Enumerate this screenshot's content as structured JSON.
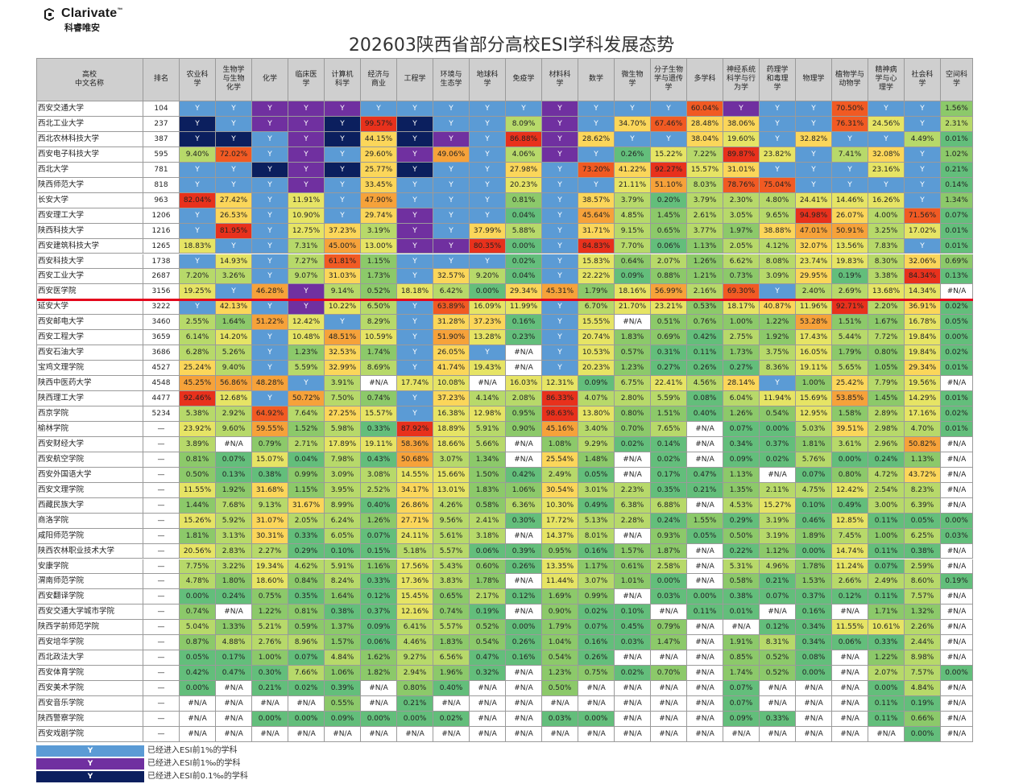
{
  "brand": {
    "name": "Clarivate",
    "trademark": "™",
    "sub": "科睿唯安"
  },
  "title": "202603陕西省部分高校ESI学科发展态势",
  "headers": [
    "高校\n中文名称",
    "排名",
    "农业科\n学",
    "生物学\n与生物\n化学",
    "化学",
    "临床医\n学",
    "计算机\n科学",
    "经济与\n商业",
    "工程学",
    "环境与\n生态学",
    "地球科\n学",
    "免疫学",
    "材料科\n学",
    "数学",
    "微生物\n学",
    "分子生物\n学与遗传\n学",
    "多学科",
    "神经系统\n科学与行\n为学",
    "药理学\n和毒理\n学",
    "物理学",
    "植物学与\n动物学",
    "精神病\n学与心\n理学",
    "社会科\n学",
    "空间科\n学"
  ],
  "rows": [
    [
      "西安交通大学",
      "104",
      "Y",
      "Y",
      "Y",
      "Y",
      "Y",
      "Y",
      "Y",
      "Y",
      "Y",
      "Y",
      "Y",
      "Y",
      "Y",
      "Y",
      "60.04%",
      "Y",
      "Y",
      "Y",
      "70.50%",
      "Y",
      "Y",
      "1.56%"
    ],
    [
      "西北工业大学",
      "237",
      "Y",
      "Y",
      "Y",
      "Y",
      "Y",
      "99.57%",
      "Y",
      "Y",
      "Y",
      "8.09%",
      "Y",
      "Y",
      "34.70%",
      "67.46%",
      "28.48%",
      "38.06%",
      "Y",
      "Y",
      "76.31%",
      "24.56%",
      "Y",
      "2.31%"
    ],
    [
      "西北农林科技大学",
      "387",
      "Y",
      "Y",
      "Y",
      "Y",
      "Y",
      "44.15%",
      "Y",
      "Y",
      "Y",
      "86.88%",
      "Y",
      "28.62%",
      "Y",
      "Y",
      "38.04%",
      "19.60%",
      "Y",
      "32.82%",
      "Y",
      "Y",
      "4.49%",
      "0.01%"
    ],
    [
      "西安电子科技大学",
      "595",
      "9.40%",
      "72.02%",
      "Y",
      "Y",
      "Y",
      "29.60%",
      "Y",
      "49.06%",
      "Y",
      "4.06%",
      "Y",
      "Y",
      "0.26%",
      "15.22%",
      "7.22%",
      "89.87%",
      "23.82%",
      "Y",
      "7.41%",
      "32.08%",
      "Y",
      "1.02%"
    ],
    [
      "西北大学",
      "781",
      "Y",
      "Y",
      "Y",
      "Y",
      "Y",
      "25.77%",
      "Y",
      "Y",
      "Y",
      "27.98%",
      "Y",
      "73.20%",
      "41.22%",
      "92.27%",
      "15.57%",
      "31.01%",
      "Y",
      "Y",
      "Y",
      "23.16%",
      "Y",
      "0.21%"
    ],
    [
      "陕西师范大学",
      "818",
      "Y",
      "Y",
      "Y",
      "Y",
      "Y",
      "33.45%",
      "Y",
      "Y",
      "Y",
      "20.23%",
      "Y",
      "Y",
      "21.11%",
      "51.10%",
      "8.03%",
      "78.76%",
      "75.04%",
      "Y",
      "Y",
      "Y",
      "Y",
      "0.14%"
    ],
    [
      "长安大学",
      "963",
      "82.04%",
      "27.42%",
      "Y",
      "11.91%",
      "Y",
      "47.90%",
      "Y",
      "Y",
      "Y",
      "0.81%",
      "Y",
      "38.57%",
      "3.79%",
      "0.20%",
      "3.79%",
      "2.30%",
      "4.80%",
      "24.41%",
      "14.46%",
      "16.26%",
      "Y",
      "1.34%"
    ],
    [
      "西安理工大学",
      "1206",
      "Y",
      "26.53%",
      "Y",
      "10.90%",
      "Y",
      "29.74%",
      "Y",
      "Y",
      "Y",
      "0.04%",
      "Y",
      "45.64%",
      "4.85%",
      "1.45%",
      "2.61%",
      "3.05%",
      "9.65%",
      "94.98%",
      "26.07%",
      "4.00%",
      "71.56%",
      "0.07%"
    ],
    [
      "陕西科技大学",
      "1216",
      "Y",
      "81.95%",
      "Y",
      "12.75%",
      "37.23%",
      "3.19%",
      "Y",
      "Y",
      "37.99%",
      "5.88%",
      "Y",
      "31.71%",
      "9.15%",
      "0.65%",
      "3.77%",
      "1.97%",
      "38.88%",
      "47.01%",
      "50.91%",
      "3.25%",
      "17.02%",
      "0.01%"
    ],
    [
      "西安建筑科技大学",
      "1265",
      "18.83%",
      "Y",
      "Y",
      "7.31%",
      "45.00%",
      "13.00%",
      "Y",
      "Y",
      "80.35%",
      "0.00%",
      "Y",
      "84.83%",
      "7.70%",
      "0.06%",
      "1.13%",
      "2.05%",
      "4.12%",
      "32.07%",
      "13.56%",
      "7.83%",
      "Y",
      "0.01%"
    ],
    [
      "西安科技大学",
      "1738",
      "Y",
      "14.93%",
      "Y",
      "7.27%",
      "61.81%",
      "1.15%",
      "Y",
      "Y",
      "Y",
      "0.02%",
      "Y",
      "15.83%",
      "0.64%",
      "2.07%",
      "1.26%",
      "6.62%",
      "8.08%",
      "23.74%",
      "19.83%",
      "8.30%",
      "32.06%",
      "0.69%"
    ],
    [
      "西安工业大学",
      "2687",
      "7.20%",
      "3.26%",
      "Y",
      "9.07%",
      "31.03%",
      "1.73%",
      "Y",
      "32.57%",
      "9.20%",
      "0.04%",
      "Y",
      "22.22%",
      "0.09%",
      "0.88%",
      "1.21%",
      "0.73%",
      "3.09%",
      "29.95%",
      "0.19%",
      "3.38%",
      "84.34%",
      "0.13%"
    ],
    [
      "西安医学院",
      "3156",
      "19.25%",
      "Y",
      "46.28%",
      "Y",
      "9.14%",
      "0.52%",
      "18.18%",
      "6.42%",
      "0.00%",
      "29.34%",
      "45.31%",
      "1.79%",
      "18.16%",
      "56.99%",
      "2.16%",
      "69.30%",
      "Y",
      "2.40%",
      "2.69%",
      "13.68%",
      "14.34%",
      "#N/A"
    ],
    [
      "延安大学",
      "3222",
      "Y",
      "42.13%",
      "Y",
      "Y",
      "10.22%",
      "6.50%",
      "Y",
      "63.89%",
      "16.09%",
      "11.99%",
      "Y",
      "6.70%",
      "21.70%",
      "23.21%",
      "0.53%",
      "18.17%",
      "40.87%",
      "11.96%",
      "92.71%",
      "2.20%",
      "36.91%",
      "0.02%"
    ],
    [
      "西安邮电大学",
      "3460",
      "2.55%",
      "1.64%",
      "51.22%",
      "12.42%",
      "Y",
      "8.29%",
      "Y",
      "31.28%",
      "37.23%",
      "0.16%",
      "Y",
      "15.55%",
      "#N/A",
      "0.51%",
      "0.76%",
      "1.00%",
      "1.22%",
      "53.28%",
      "1.51%",
      "1.67%",
      "16.78%",
      "0.05%"
    ],
    [
      "西安工程大学",
      "3659",
      "6.14%",
      "14.20%",
      "Y",
      "10.48%",
      "48.51%",
      "10.59%",
      "Y",
      "51.90%",
      "13.28%",
      "0.23%",
      "Y",
      "20.74%",
      "1.83%",
      "0.69%",
      "0.42%",
      "2.75%",
      "1.92%",
      "17.43%",
      "5.44%",
      "7.72%",
      "19.84%",
      "0.00%"
    ],
    [
      "西安石油大学",
      "3686",
      "6.28%",
      "5.26%",
      "Y",
      "1.23%",
      "32.53%",
      "1.74%",
      "Y",
      "26.05%",
      "Y",
      "#N/A",
      "Y",
      "10.53%",
      "0.57%",
      "0.31%",
      "0.11%",
      "1.73%",
      "3.75%",
      "16.05%",
      "1.79%",
      "0.80%",
      "19.84%",
      "0.02%"
    ],
    [
      "宝鸡文理学院",
      "4527",
      "25.24%",
      "9.40%",
      "Y",
      "5.59%",
      "32.99%",
      "8.69%",
      "Y",
      "41.74%",
      "19.43%",
      "#N/A",
      "Y",
      "20.23%",
      "1.23%",
      "0.27%",
      "0.26%",
      "0.27%",
      "8.36%",
      "19.11%",
      "5.65%",
      "1.05%",
      "29.34%",
      "0.01%"
    ],
    [
      "陕西中医药大学",
      "4548",
      "45.25%",
      "56.86%",
      "48.28%",
      "Y",
      "3.91%",
      "#N/A",
      "17.74%",
      "10.08%",
      "#N/A",
      "16.03%",
      "12.31%",
      "0.09%",
      "6.75%",
      "22.41%",
      "4.56%",
      "28.14%",
      "Y",
      "1.00%",
      "25.42%",
      "7.79%",
      "19.56%",
      "#N/A"
    ],
    [
      "陕西理工大学",
      "4477",
      "92.46%",
      "12.68%",
      "Y",
      "50.72%",
      "7.50%",
      "0.74%",
      "Y",
      "37.23%",
      "4.14%",
      "2.08%",
      "86.33%",
      "4.07%",
      "2.80%",
      "5.59%",
      "0.08%",
      "6.04%",
      "11.94%",
      "15.69%",
      "53.85%",
      "1.45%",
      "14.29%",
      "0.01%"
    ],
    [
      "西京学院",
      "5234",
      "5.38%",
      "2.92%",
      "64.92%",
      "7.64%",
      "27.25%",
      "15.57%",
      "Y",
      "16.38%",
      "12.98%",
      "0.95%",
      "98.63%",
      "13.80%",
      "0.80%",
      "1.51%",
      "0.40%",
      "1.26%",
      "0.54%",
      "12.95%",
      "1.58%",
      "2.89%",
      "17.16%",
      "0.02%"
    ],
    [
      "榆林学院",
      "—",
      "23.92%",
      "9.60%",
      "59.55%",
      "1.52%",
      "5.98%",
      "0.33%",
      "87.92%",
      "18.89%",
      "5.91%",
      "0.90%",
      "45.16%",
      "3.40%",
      "0.70%",
      "7.65%",
      "#N/A",
      "0.07%",
      "0.00%",
      "5.03%",
      "39.51%",
      "2.98%",
      "4.70%",
      "0.01%"
    ],
    [
      "西安财经大学",
      "—",
      "3.89%",
      "#N/A",
      "0.79%",
      "2.71%",
      "17.89%",
      "19.11%",
      "58.36%",
      "18.66%",
      "5.66%",
      "#N/A",
      "1.08%",
      "9.29%",
      "0.02%",
      "0.14%",
      "#N/A",
      "0.34%",
      "0.37%",
      "1.81%",
      "3.61%",
      "2.96%",
      "50.82%",
      "#N/A"
    ],
    [
      "西安航空学院",
      "—",
      "0.81%",
      "0.07%",
      "15.07%",
      "0.04%",
      "7.98%",
      "0.43%",
      "50.68%",
      "3.07%",
      "1.34%",
      "#N/A",
      "25.54%",
      "1.48%",
      "#N/A",
      "0.02%",
      "#N/A",
      "0.09%",
      "0.02%",
      "5.76%",
      "0.00%",
      "0.24%",
      "1.13%",
      "#N/A"
    ],
    [
      "西安外国语大学",
      "—",
      "0.50%",
      "0.13%",
      "0.38%",
      "0.99%",
      "3.09%",
      "3.08%",
      "14.55%",
      "15.66%",
      "1.50%",
      "0.42%",
      "2.49%",
      "0.05%",
      "#N/A",
      "0.17%",
      "0.47%",
      "1.13%",
      "#N/A",
      "0.07%",
      "0.80%",
      "4.72%",
      "43.72%",
      "#N/A"
    ],
    [
      "西安文理学院",
      "—",
      "11.55%",
      "1.92%",
      "31.68%",
      "1.15%",
      "3.95%",
      "2.52%",
      "34.17%",
      "13.01%",
      "1.83%",
      "1.06%",
      "30.54%",
      "3.01%",
      "2.23%",
      "0.35%",
      "0.21%",
      "1.35%",
      "2.11%",
      "4.75%",
      "12.42%",
      "2.54%",
      "8.23%",
      "#N/A"
    ],
    [
      "西藏民族大学",
      "—",
      "1.44%",
      "7.68%",
      "9.13%",
      "31.67%",
      "8.99%",
      "0.40%",
      "26.86%",
      "4.26%",
      "0.58%",
      "6.36%",
      "10.30%",
      "0.49%",
      "6.38%",
      "6.88%",
      "#N/A",
      "4.53%",
      "15.27%",
      "0.10%",
      "0.49%",
      "3.00%",
      "6.39%",
      "#N/A"
    ],
    [
      "商洛学院",
      "—",
      "15.26%",
      "5.92%",
      "31.07%",
      "2.05%",
      "6.24%",
      "1.26%",
      "27.71%",
      "9.56%",
      "2.41%",
      "0.30%",
      "17.72%",
      "5.13%",
      "2.28%",
      "0.24%",
      "1.55%",
      "0.29%",
      "3.19%",
      "0.46%",
      "12.85%",
      "0.11%",
      "0.05%",
      "0.00%"
    ],
    [
      "咸阳师范学院",
      "—",
      "1.81%",
      "3.13%",
      "30.31%",
      "0.33%",
      "6.05%",
      "0.07%",
      "24.11%",
      "5.61%",
      "3.18%",
      "#N/A",
      "14.37%",
      "8.01%",
      "#N/A",
      "0.93%",
      "0.05%",
      "0.50%",
      "3.19%",
      "1.89%",
      "7.45%",
      "1.00%",
      "6.25%",
      "0.03%"
    ],
    [
      "陕西农林职业技术大学",
      "—",
      "20.56%",
      "2.83%",
      "2.27%",
      "0.29%",
      "0.10%",
      "0.15%",
      "5.18%",
      "5.57%",
      "0.06%",
      "0.39%",
      "0.95%",
      "0.16%",
      "1.57%",
      "1.87%",
      "#N/A",
      "0.22%",
      "1.12%",
      "0.00%",
      "14.74%",
      "0.11%",
      "0.38%",
      "#N/A"
    ],
    [
      "安康学院",
      "—",
      "7.75%",
      "3.22%",
      "19.34%",
      "4.62%",
      "5.91%",
      "1.16%",
      "17.56%",
      "5.43%",
      "0.60%",
      "0.26%",
      "13.35%",
      "1.17%",
      "0.61%",
      "2.58%",
      "#N/A",
      "5.31%",
      "4.96%",
      "1.78%",
      "11.24%",
      "0.07%",
      "2.59%",
      "#N/A"
    ],
    [
      "渭南师范学院",
      "—",
      "4.78%",
      "1.80%",
      "18.60%",
      "0.84%",
      "8.24%",
      "0.33%",
      "17.36%",
      "3.83%",
      "1.78%",
      "#N/A",
      "11.44%",
      "3.07%",
      "1.01%",
      "0.00%",
      "#N/A",
      "0.58%",
      "0.21%",
      "1.53%",
      "2.66%",
      "2.49%",
      "8.60%",
      "0.19%"
    ],
    [
      "西安翻译学院",
      "—",
      "0.00%",
      "0.24%",
      "0.75%",
      "0.35%",
      "1.64%",
      "0.12%",
      "15.45%",
      "0.65%",
      "2.17%",
      "0.12%",
      "1.69%",
      "0.99%",
      "#N/A",
      "0.03%",
      "0.00%",
      "0.38%",
      "0.07%",
      "0.37%",
      "0.12%",
      "0.11%",
      "7.57%",
      "#N/A"
    ],
    [
      "西安交通大学城市学院",
      "—",
      "0.74%",
      "#N/A",
      "1.22%",
      "0.81%",
      "0.38%",
      "0.37%",
      "12.16%",
      "0.74%",
      "0.19%",
      "#N/A",
      "0.90%",
      "0.02%",
      "0.10%",
      "#N/A",
      "0.11%",
      "0.01%",
      "#N/A",
      "0.16%",
      "#N/A",
      "1.71%",
      "1.32%",
      "#N/A"
    ],
    [
      "陕西学前师范学院",
      "—",
      "5.04%",
      "1.33%",
      "5.21%",
      "0.59%",
      "1.37%",
      "0.09%",
      "6.41%",
      "5.57%",
      "0.52%",
      "0.00%",
      "1.79%",
      "0.07%",
      "0.45%",
      "0.79%",
      "#N/A",
      "#N/A",
      "0.12%",
      "0.34%",
      "11.55%",
      "10.61%",
      "2.26%",
      "#N/A"
    ],
    [
      "西安培华学院",
      "—",
      "0.87%",
      "4.88%",
      "2.76%",
      "8.96%",
      "1.57%",
      "0.06%",
      "4.46%",
      "1.83%",
      "0.54%",
      "0.26%",
      "1.04%",
      "0.16%",
      "0.03%",
      "1.47%",
      "#N/A",
      "1.91%",
      "8.31%",
      "0.34%",
      "0.06%",
      "0.33%",
      "2.44%",
      "#N/A"
    ],
    [
      "西北政法大学",
      "—",
      "0.05%",
      "0.17%",
      "1.00%",
      "0.07%",
      "4.84%",
      "1.62%",
      "9.27%",
      "6.56%",
      "0.47%",
      "0.16%",
      "0.54%",
      "0.26%",
      "#N/A",
      "#N/A",
      "#N/A",
      "0.85%",
      "0.52%",
      "0.08%",
      "#N/A",
      "1.22%",
      "8.98%",
      "#N/A"
    ],
    [
      "西安体育学院",
      "—",
      "0.42%",
      "0.47%",
      "0.30%",
      "7.66%",
      "1.06%",
      "1.82%",
      "2.94%",
      "1.96%",
      "0.32%",
      "#N/A",
      "1.23%",
      "0.75%",
      "0.02%",
      "0.70%",
      "#N/A",
      "1.74%",
      "0.52%",
      "0.00%",
      "#N/A",
      "2.07%",
      "7.57%",
      "0.00%"
    ],
    [
      "西安美术学院",
      "—",
      "0.00%",
      "#N/A",
      "0.21%",
      "0.02%",
      "0.39%",
      "#N/A",
      "0.80%",
      "0.40%",
      "#N/A",
      "#N/A",
      "0.50%",
      "#N/A",
      "#N/A",
      "#N/A",
      "#N/A",
      "0.07%",
      "#N/A",
      "#N/A",
      "#N/A",
      "0.00%",
      "4.84%",
      "#N/A"
    ],
    [
      "西安音乐学院",
      "—",
      "#N/A",
      "#N/A",
      "#N/A",
      "#N/A",
      "0.55%",
      "#N/A",
      "0.21%",
      "#N/A",
      "#N/A",
      "#N/A",
      "#N/A",
      "#N/A",
      "#N/A",
      "#N/A",
      "#N/A",
      "0.07%",
      "#N/A",
      "#N/A",
      "#N/A",
      "0.11%",
      "0.19%",
      "#N/A"
    ],
    [
      "陕西警察学院",
      "—",
      "#N/A",
      "#N/A",
      "0.00%",
      "0.00%",
      "0.09%",
      "0.00%",
      "0.00%",
      "0.02%",
      "#N/A",
      "#N/A",
      "0.03%",
      "0.00%",
      "#N/A",
      "#N/A",
      "#N/A",
      "0.09%",
      "0.33%",
      "#N/A",
      "#N/A",
      "0.11%",
      "0.66%",
      "#N/A"
    ],
    [
      "西安戏剧学院",
      "—",
      "#N/A",
      "#N/A",
      "#N/A",
      "#N/A",
      "#N/A",
      "#N/A",
      "#N/A",
      "#N/A",
      "#N/A",
      "#N/A",
      "#N/A",
      "#N/A",
      "#N/A",
      "#N/A",
      "#N/A",
      "#N/A",
      "#N/A",
      "#N/A",
      "#N/A",
      "#N/A",
      "0.00%",
      "#N/A"
    ]
  ],
  "y_status": [
    "33333333333331333133331",
    "3333313332331313111133311",
    "3323333333333131313131131",
    "3131333",
    "3131",
    "3131",
    "3331",
    "3313",
    "33333333",
    "3131",
    "3",
    "3"
  ],
  "top01_cells": [
    [
      1,
      0
    ],
    [
      1,
      4
    ],
    [
      1,
      6
    ],
    [
      2,
      0
    ],
    [
      2,
      1
    ],
    [
      2,
      4
    ],
    [
      2,
      6
    ],
    [
      2,
      17
    ],
    [
      4,
      4
    ],
    [
      4,
      6
    ],
    [
      4,
      2
    ]
  ],
  "top1pm_cells": [
    [
      0,
      2
    ],
    [
      0,
      3
    ],
    [
      0,
      4
    ],
    [
      0,
      10
    ],
    [
      0,
      15
    ],
    [
      1,
      2
    ],
    [
      1,
      3
    ],
    [
      1,
      10
    ],
    [
      2,
      3
    ],
    [
      2,
      7
    ],
    [
      2,
      10
    ],
    [
      3,
      3
    ],
    [
      3,
      6
    ],
    [
      3,
      10
    ],
    [
      4,
      3
    ],
    [
      5,
      3
    ],
    [
      7,
      6
    ],
    [
      8,
      6
    ],
    [
      9,
      6
    ],
    [
      9,
      7
    ],
    [
      10,
      3
    ],
    [
      11,
      3
    ],
    [
      12,
      2
    ],
    [
      13,
      3
    ],
    [
      13,
      5
    ],
    [
      14,
      5
    ],
    [
      12,
      3
    ]
  ],
  "colors": {
    "y_default": "#5b9bd5",
    "y_top1pm": "#7030a0",
    "y_top01": "#0b1f5e",
    "red": "#e4061c"
  },
  "legend": [
    {
      "mark": "Y",
      "color": "#5b9bd5",
      "text": "已经进入ESI前1%的学科"
    },
    {
      "mark": "Y",
      "color": "#7030a0",
      "text": "已经进入ESI前1‰的学科"
    },
    {
      "mark": "Y",
      "color": "#0b1f5e",
      "text": "已经进入ESI前0.1‰的学科"
    }
  ]
}
